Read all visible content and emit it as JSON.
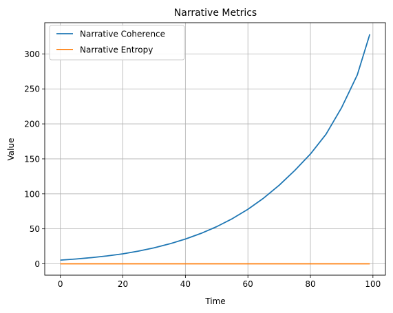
{
  "chart_data": {
    "type": "line",
    "title": "Narrative Metrics",
    "xlabel": "Time",
    "ylabel": "Value",
    "xlim": [
      -5,
      104
    ],
    "ylim": [
      -16.2,
      344.6
    ],
    "xticks": [
      0,
      20,
      40,
      60,
      80,
      100
    ],
    "yticks": [
      0,
      50,
      100,
      150,
      200,
      250,
      300
    ],
    "grid": true,
    "legend": {
      "position": "top-left"
    },
    "series": [
      {
        "name": "Narrative Coherence",
        "color": "#1f77b4",
        "x": [
          0,
          5,
          10,
          15,
          20,
          25,
          30,
          35,
          40,
          45,
          50,
          55,
          60,
          65,
          70,
          75,
          80,
          85,
          90,
          95,
          99
        ],
        "y": [
          5.3,
          6.9,
          8.9,
          11.3,
          14.3,
          18.2,
          22.9,
          28.6,
          35.4,
          43.5,
          53.1,
          64.5,
          77.9,
          93.8,
          112.3,
          133.5,
          156.9,
          185.3,
          223.4,
          270.0,
          328.0
        ]
      },
      {
        "name": "Narrative Entropy",
        "color": "#ff7f0e",
        "x": [
          0,
          99
        ],
        "y": [
          0,
          0
        ]
      }
    ]
  }
}
